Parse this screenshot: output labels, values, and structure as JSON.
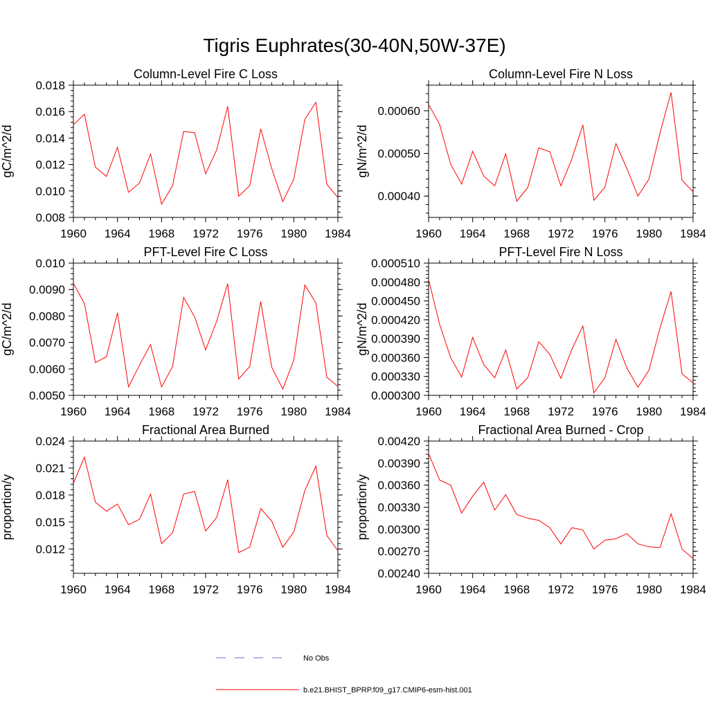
{
  "figure": {
    "title": "Tigris Euphrates(30-40N,50W-37E)"
  },
  "legend": {
    "items": [
      {
        "label": "No Obs",
        "color": "#6b6bd6",
        "style": "dashed"
      },
      {
        "label": "b.e21.BHIST_BPRP.f09_g17.CMIP6-esm-hist.001",
        "color": "#ff0000",
        "style": "solid"
      }
    ]
  },
  "chart_data": [
    {
      "type": "line",
      "title": "Column-Level Fire C Loss",
      "ylabel": "gC/m^2/d",
      "xlim": [
        1960,
        1984
      ],
      "ylim": [
        0.008,
        0.018
      ],
      "xticks": [
        "1960",
        "1964",
        "1968",
        "1972",
        "1976",
        "1980",
        "1984"
      ],
      "yticks": [
        "0.008",
        "0.010",
        "0.012",
        "0.014",
        "0.016",
        "0.018"
      ],
      "series": [
        {
          "name": "b.e21.BHIST_BPRP.f09_g17.CMIP6-esm-hist.001",
          "color": "#ff0000",
          "x": [
            1960,
            1961,
            1962,
            1963,
            1964,
            1965,
            1966,
            1967,
            1968,
            1969,
            1970,
            1971,
            1972,
            1973,
            1974,
            1975,
            1976,
            1977,
            1978,
            1979,
            1980,
            1981,
            1982,
            1983,
            1984
          ],
          "y": [
            0.015,
            0.0158,
            0.0118,
            0.0111,
            0.0133,
            0.0099,
            0.0106,
            0.0128,
            0.009,
            0.0104,
            0.0145,
            0.0144,
            0.0113,
            0.0131,
            0.0164,
            0.0096,
            0.0104,
            0.0147,
            0.0117,
            0.0092,
            0.0109,
            0.0154,
            0.0167,
            0.0105,
            0.0095
          ]
        }
      ]
    },
    {
      "type": "line",
      "title": "Column-Level Fire N Loss",
      "ylabel": "gN/m^2/d",
      "xlim": [
        1960,
        1984
      ],
      "ylim": [
        0.00035,
        0.00066
      ],
      "xticks": [
        "1960",
        "1964",
        "1968",
        "1972",
        "1976",
        "1980",
        "1984"
      ],
      "yticks": [
        "0.00040",
        "0.00050",
        "0.00060"
      ],
      "ytick_values": [
        0.0004,
        0.0005,
        0.0006
      ],
      "series": [
        {
          "name": "b.e21.BHIST_BPRP.f09_g17.CMIP6-esm-hist.001",
          "color": "#ff0000",
          "x": [
            1960,
            1961,
            1962,
            1963,
            1964,
            1965,
            1966,
            1967,
            1968,
            1969,
            1970,
            1971,
            1972,
            1973,
            1974,
            1975,
            1976,
            1977,
            1978,
            1979,
            1980,
            1981,
            1982,
            1983,
            1984
          ],
          "y": [
            0.000615,
            0.000568,
            0.000475,
            0.000428,
            0.000505,
            0.000447,
            0.000424,
            0.000499,
            0.000388,
            0.00042,
            0.000513,
            0.000504,
            0.000424,
            0.000487,
            0.000567,
            0.00039,
            0.000421,
            0.000523,
            0.000464,
            0.0004,
            0.00044,
            0.000548,
            0.000643,
            0.000437,
            0.00041
          ]
        }
      ]
    },
    {
      "type": "line",
      "title": "PFT-Level Fire C Loss",
      "ylabel": "gC/m^2/d",
      "xlim": [
        1960,
        1984
      ],
      "ylim": [
        0.005,
        0.01
      ],
      "xticks": [
        "1960",
        "1964",
        "1968",
        "1972",
        "1976",
        "1980",
        "1984"
      ],
      "yticks": [
        "0.0050",
        "0.0060",
        "0.0070",
        "0.0080",
        "0.0090",
        "0.010"
      ],
      "series": [
        {
          "name": "b.e21.BHIST_BPRP.f09_g17.CMIP6-esm-hist.001",
          "color": "#ff0000",
          "x": [
            1960,
            1961,
            1962,
            1963,
            1964,
            1965,
            1966,
            1967,
            1968,
            1969,
            1970,
            1971,
            1972,
            1973,
            1974,
            1975,
            1976,
            1977,
            1978,
            1979,
            1980,
            1981,
            1982,
            1983,
            1984
          ],
          "y": [
            0.00924,
            0.00847,
            0.00624,
            0.00646,
            0.00812,
            0.00532,
            0.00614,
            0.00692,
            0.00532,
            0.00609,
            0.0087,
            0.00797,
            0.00672,
            0.0078,
            0.00922,
            0.00562,
            0.00609,
            0.00855,
            0.00606,
            0.00524,
            0.00634,
            0.00917,
            0.0085,
            0.00568,
            0.00534
          ]
        }
      ]
    },
    {
      "type": "line",
      "title": "PFT-Level Fire N Loss",
      "ylabel": "gN/m^2/d",
      "xlim": [
        1960,
        1984
      ],
      "ylim": [
        0.0003,
        0.00051
      ],
      "xticks": [
        "1960",
        "1964",
        "1968",
        "1972",
        "1976",
        "1980",
        "1984"
      ],
      "yticks": [
        "0.000300",
        "0.000330",
        "0.000360",
        "0.000390",
        "0.000420",
        "0.000450",
        "0.000480",
        "0.000510"
      ],
      "series": [
        {
          "name": "b.e21.BHIST_BPRP.f09_g17.CMIP6-esm-hist.001",
          "color": "#ff0000",
          "x": [
            1960,
            1961,
            1962,
            1963,
            1964,
            1965,
            1966,
            1967,
            1968,
            1969,
            1970,
            1971,
            1972,
            1973,
            1974,
            1975,
            1976,
            1977,
            1978,
            1979,
            1980,
            1981,
            1982,
            1983,
            1984
          ],
          "y": [
            0.000484,
            0.000413,
            0.00036,
            0.000329,
            0.000392,
            0.000349,
            0.000328,
            0.000372,
            0.00031,
            0.000328,
            0.000385,
            0.000365,
            0.000327,
            0.000373,
            0.00041,
            0.000304,
            0.000328,
            0.000389,
            0.000343,
            0.000313,
            0.00034,
            0.000407,
            0.000465,
            0.000334,
            0.00032
          ]
        }
      ]
    },
    {
      "type": "line",
      "title": "Fractional Area Burned",
      "ylabel": "proportion/y",
      "xlim": [
        1960,
        1984
      ],
      "ylim": [
        0.0093,
        0.024
      ],
      "xticks": [
        "1960",
        "1964",
        "1968",
        "1972",
        "1976",
        "1980",
        "1984"
      ],
      "yticks": [
        "0.012",
        "0.015",
        "0.018",
        "0.021",
        "0.024"
      ],
      "ytick_values": [
        0.012,
        0.015,
        0.018,
        0.021,
        0.024
      ],
      "series": [
        {
          "name": "b.e21.BHIST_BPRP.f09_g17.CMIP6-esm-hist.001",
          "color": "#ff0000",
          "x": [
            1960,
            1961,
            1962,
            1963,
            1964,
            1965,
            1966,
            1967,
            1968,
            1969,
            1970,
            1971,
            1972,
            1973,
            1974,
            1975,
            1976,
            1977,
            1978,
            1979,
            1980,
            1981,
            1982,
            1983,
            1984
          ],
          "y": [
            0.0193,
            0.0222,
            0.0172,
            0.0162,
            0.017,
            0.0147,
            0.0153,
            0.0181,
            0.0126,
            0.0138,
            0.0181,
            0.0184,
            0.014,
            0.0155,
            0.0197,
            0.0116,
            0.0122,
            0.0165,
            0.0151,
            0.0122,
            0.0139,
            0.0185,
            0.0212,
            0.0135,
            0.0118
          ]
        }
      ]
    },
    {
      "type": "line",
      "title": "Fractional Area Burned - Crop",
      "ylabel": "proportion/y",
      "xlim": [
        1960,
        1984
      ],
      "ylim": [
        0.0024,
        0.0042
      ],
      "xticks": [
        "1960",
        "1964",
        "1968",
        "1972",
        "1976",
        "1980",
        "1984"
      ],
      "yticks": [
        "0.00240",
        "0.00270",
        "0.00300",
        "0.00330",
        "0.00360",
        "0.00390",
        "0.00420"
      ],
      "series": [
        {
          "name": "b.e21.BHIST_BPRP.f09_g17.CMIP6-esm-hist.001",
          "color": "#ff0000",
          "x": [
            1960,
            1961,
            1962,
            1963,
            1964,
            1965,
            1966,
            1967,
            1968,
            1969,
            1970,
            1971,
            1972,
            1973,
            1974,
            1975,
            1976,
            1977,
            1978,
            1979,
            1980,
            1981,
            1982,
            1983,
            1984
          ],
          "y": [
            0.00403,
            0.00367,
            0.0036,
            0.00322,
            0.00345,
            0.00364,
            0.00326,
            0.00347,
            0.0032,
            0.00315,
            0.00312,
            0.00302,
            0.0028,
            0.00302,
            0.00299,
            0.00273,
            0.00285,
            0.00287,
            0.00294,
            0.0028,
            0.00276,
            0.00275,
            0.00321,
            0.00273,
            0.0026
          ]
        }
      ]
    }
  ]
}
